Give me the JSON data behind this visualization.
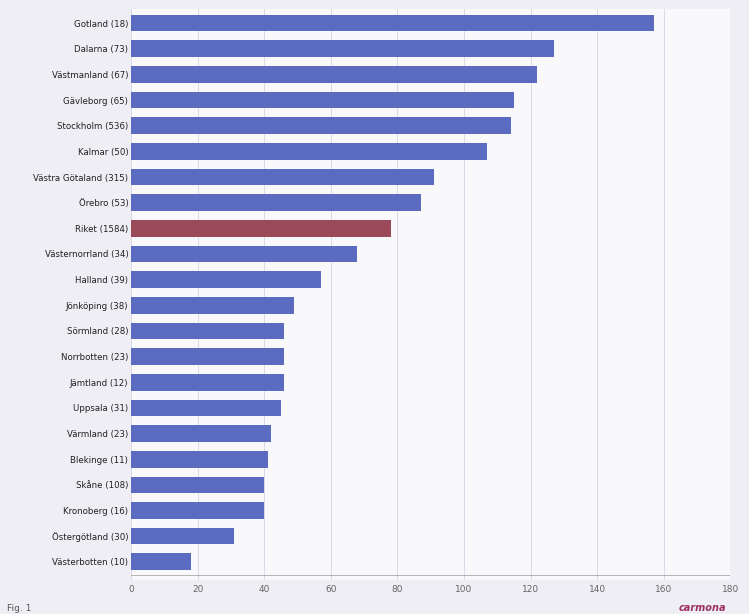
{
  "categories": [
    "Gotland (18)",
    "Dalarna (73)",
    "Västmanland (67)",
    "Gävleborg (65)",
    "Stockholm (536)",
    "Kalmar (50)",
    "Västra Götaland (315)",
    "Örebro (53)",
    "Riket (1584)",
    "Västernorrland (34)",
    "Halland (39)",
    "Jönköping (38)",
    "Sörmland (28)",
    "Norrbotten (23)",
    "Jämtland (12)",
    "Uppsala (31)",
    "Värmland (23)",
    "Blekinge (11)",
    "Skåne (108)",
    "Kronoberg (16)",
    "Östergötland (30)",
    "Västerbotten (10)"
  ],
  "values": [
    157,
    127,
    122,
    115,
    114,
    107,
    91,
    87,
    78,
    68,
    57,
    49,
    46,
    46,
    46,
    45,
    42,
    41,
    40,
    40,
    31,
    18
  ],
  "bar_colors": [
    "#5b6bbf",
    "#5b6bbf",
    "#5b6bbf",
    "#5b6bbf",
    "#5b6bbf",
    "#5b6bbf",
    "#5b6bbf",
    "#5b6bbf",
    "#9b4a5a",
    "#5b6bbf",
    "#5b6bbf",
    "#5b6bbf",
    "#5b6bbf",
    "#5b6bbf",
    "#5b6bbf",
    "#5b6bbf",
    "#5b6bbf",
    "#5b6bbf",
    "#5b6bbf",
    "#5b6bbf",
    "#5b6bbf",
    "#5b6bbf"
  ],
  "xlim": [
    0,
    180
  ],
  "xticks": [
    0,
    20,
    40,
    60,
    80,
    100,
    120,
    140,
    160,
    180
  ],
  "background_color": "#eeeef4",
  "plot_background": "#f9f9fc",
  "grid_color": "#d8d8e8",
  "bar_height": 0.65,
  "fig_caption": "Fig. 1",
  "carmona_text": "carmona",
  "label_fontsize": 6.2,
  "tick_fontsize": 6.5
}
